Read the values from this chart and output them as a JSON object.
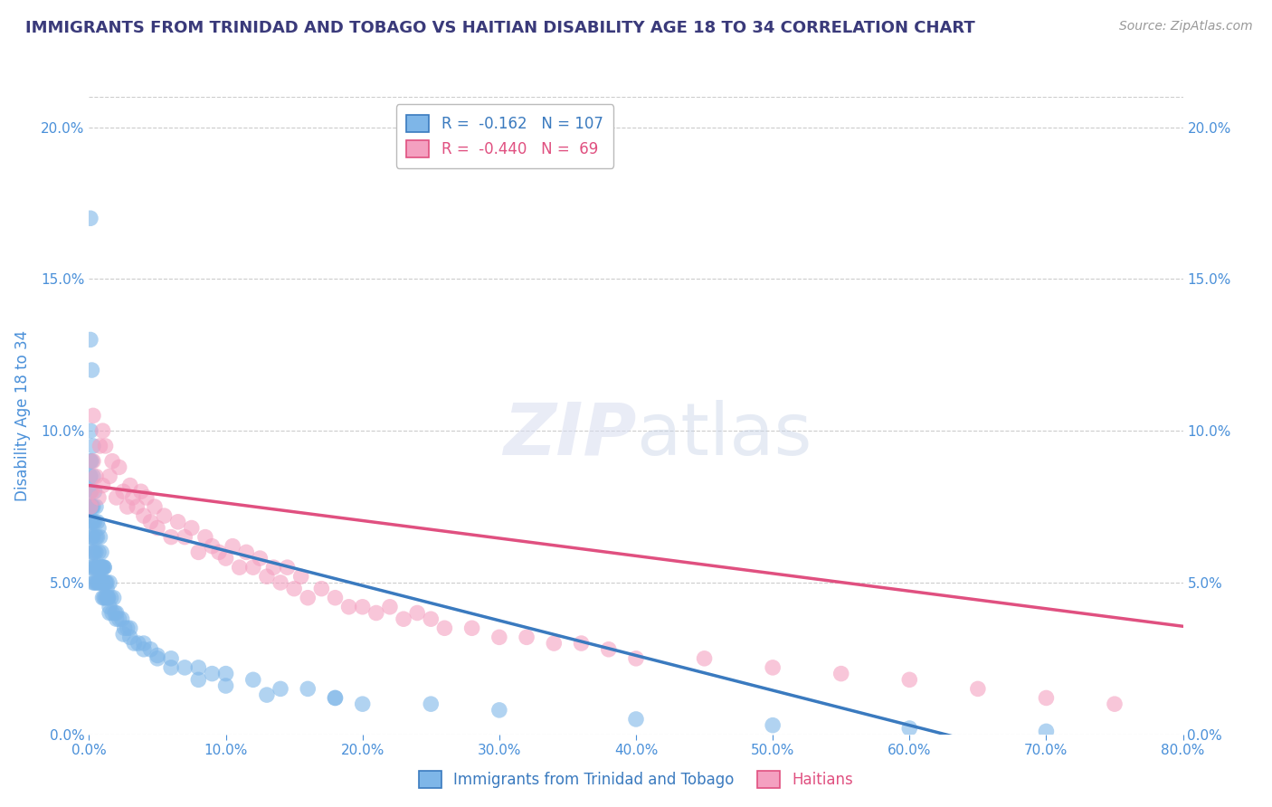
{
  "title": "IMMIGRANTS FROM TRINIDAD AND TOBAGO VS HAITIAN DISABILITY AGE 18 TO 34 CORRELATION CHART",
  "source": "Source: ZipAtlas.com",
  "ylabel": "Disability Age 18 to 34",
  "xlim": [
    0.0,
    0.8
  ],
  "ylim": [
    0.0,
    0.21
  ],
  "xticks": [
    0.0,
    0.1,
    0.2,
    0.3,
    0.4,
    0.5,
    0.6,
    0.7,
    0.8
  ],
  "xticklabels": [
    "0.0%",
    "10.0%",
    "20.0%",
    "30.0%",
    "40.0%",
    "50.0%",
    "60.0%",
    "70.0%",
    "80.0%"
  ],
  "yticks": [
    0.0,
    0.05,
    0.1,
    0.15,
    0.2
  ],
  "yticklabels": [
    "0.0%",
    "5.0%",
    "10.0%",
    "15.0%",
    "20.0%"
  ],
  "blue_color": "#7eb6e8",
  "pink_color": "#f4a0c0",
  "blue_line_color": "#3a7abf",
  "pink_line_color": "#e05080",
  "title_color": "#3a3a7a",
  "axis_color": "#4a90d9",
  "blue_intercept": 0.072,
  "blue_slope": -0.115,
  "pink_intercept": 0.082,
  "pink_slope": -0.058,
  "blue_scatter": {
    "x": [
      0.001,
      0.001,
      0.001,
      0.001,
      0.001,
      0.001,
      0.001,
      0.002,
      0.002,
      0.002,
      0.002,
      0.002,
      0.003,
      0.003,
      0.003,
      0.003,
      0.003,
      0.004,
      0.004,
      0.004,
      0.004,
      0.005,
      0.005,
      0.005,
      0.005,
      0.006,
      0.006,
      0.006,
      0.007,
      0.007,
      0.007,
      0.008,
      0.008,
      0.009,
      0.009,
      0.01,
      0.01,
      0.01,
      0.011,
      0.011,
      0.012,
      0.012,
      0.013,
      0.013,
      0.014,
      0.015,
      0.015,
      0.016,
      0.017,
      0.018,
      0.019,
      0.02,
      0.022,
      0.024,
      0.026,
      0.028,
      0.03,
      0.033,
      0.036,
      0.04,
      0.045,
      0.05,
      0.06,
      0.07,
      0.08,
      0.09,
      0.1,
      0.12,
      0.14,
      0.16,
      0.18,
      0.2,
      0.25,
      0.3,
      0.4,
      0.5,
      0.6,
      0.7,
      0.001,
      0.001,
      0.002,
      0.002,
      0.003,
      0.003,
      0.004,
      0.005,
      0.006,
      0.007,
      0.008,
      0.009,
      0.01,
      0.011,
      0.012,
      0.013,
      0.014,
      0.015,
      0.02,
      0.025,
      0.03,
      0.04,
      0.05,
      0.06,
      0.08,
      0.1,
      0.13,
      0.18,
      0.001
    ],
    "y": [
      0.055,
      0.065,
      0.07,
      0.075,
      0.08,
      0.085,
      0.09,
      0.055,
      0.06,
      0.065,
      0.07,
      0.075,
      0.05,
      0.06,
      0.065,
      0.07,
      0.075,
      0.05,
      0.055,
      0.06,
      0.07,
      0.05,
      0.055,
      0.06,
      0.065,
      0.05,
      0.055,
      0.065,
      0.05,
      0.055,
      0.06,
      0.05,
      0.055,
      0.05,
      0.055,
      0.045,
      0.05,
      0.055,
      0.045,
      0.055,
      0.045,
      0.05,
      0.045,
      0.05,
      0.045,
      0.04,
      0.05,
      0.045,
      0.04,
      0.045,
      0.04,
      0.04,
      0.038,
      0.038,
      0.035,
      0.035,
      0.035,
      0.03,
      0.03,
      0.03,
      0.028,
      0.025,
      0.025,
      0.022,
      0.022,
      0.02,
      0.02,
      0.018,
      0.015,
      0.015,
      0.012,
      0.01,
      0.01,
      0.008,
      0.005,
      0.003,
      0.002,
      0.001,
      0.1,
      0.13,
      0.09,
      0.12,
      0.085,
      0.095,
      0.08,
      0.075,
      0.07,
      0.068,
      0.065,
      0.06,
      0.055,
      0.055,
      0.05,
      0.048,
      0.045,
      0.042,
      0.038,
      0.033,
      0.032,
      0.028,
      0.026,
      0.022,
      0.018,
      0.016,
      0.013,
      0.012,
      0.17
    ]
  },
  "pink_scatter": {
    "x": [
      0.001,
      0.002,
      0.003,
      0.005,
      0.007,
      0.01,
      0.01,
      0.012,
      0.015,
      0.017,
      0.02,
      0.022,
      0.025,
      0.028,
      0.03,
      0.032,
      0.035,
      0.038,
      0.04,
      0.042,
      0.045,
      0.048,
      0.05,
      0.055,
      0.06,
      0.065,
      0.07,
      0.075,
      0.08,
      0.085,
      0.09,
      0.095,
      0.1,
      0.105,
      0.11,
      0.115,
      0.12,
      0.125,
      0.13,
      0.135,
      0.14,
      0.145,
      0.15,
      0.155,
      0.16,
      0.17,
      0.18,
      0.19,
      0.2,
      0.21,
      0.22,
      0.23,
      0.24,
      0.25,
      0.26,
      0.28,
      0.3,
      0.32,
      0.34,
      0.36,
      0.38,
      0.4,
      0.45,
      0.5,
      0.55,
      0.6,
      0.65,
      0.7,
      0.75,
      0.003,
      0.008
    ],
    "y": [
      0.075,
      0.08,
      0.09,
      0.085,
      0.078,
      0.1,
      0.082,
      0.095,
      0.085,
      0.09,
      0.078,
      0.088,
      0.08,
      0.075,
      0.082,
      0.078,
      0.075,
      0.08,
      0.072,
      0.078,
      0.07,
      0.075,
      0.068,
      0.072,
      0.065,
      0.07,
      0.065,
      0.068,
      0.06,
      0.065,
      0.062,
      0.06,
      0.058,
      0.062,
      0.055,
      0.06,
      0.055,
      0.058,
      0.052,
      0.055,
      0.05,
      0.055,
      0.048,
      0.052,
      0.045,
      0.048,
      0.045,
      0.042,
      0.042,
      0.04,
      0.042,
      0.038,
      0.04,
      0.038,
      0.035,
      0.035,
      0.032,
      0.032,
      0.03,
      0.03,
      0.028,
      0.025,
      0.025,
      0.022,
      0.02,
      0.018,
      0.015,
      0.012,
      0.01,
      0.105,
      0.095
    ]
  }
}
